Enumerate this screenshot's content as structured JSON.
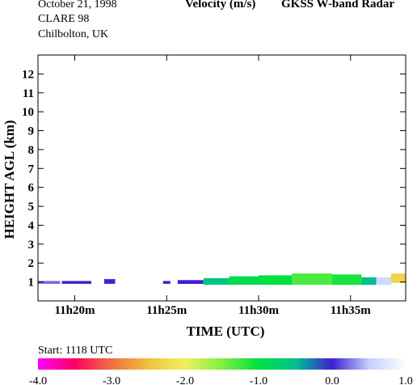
{
  "header": {
    "date": "October  21, 1998",
    "campaign": "CLARE 98",
    "location": "Chilbolton, UK",
    "title": "Velocity (m/s)",
    "instrument": "GKSS  W-band Radar"
  },
  "footer": {
    "start_label": "Start: 1118 UTC"
  },
  "chart_data": {
    "type": "heatmap",
    "title": "Velocity (m/s)",
    "xlabel": "TIME (UTC)",
    "ylabel": "HEIGHT AGL (km)",
    "x_tick_labels": [
      "11h20m",
      "11h25m",
      "11h30m",
      "11h35m"
    ],
    "x_ticks_min": [
      20,
      25,
      30,
      35
    ],
    "xlim_min": [
      18,
      38
    ],
    "y_ticks": [
      1,
      2,
      3,
      4,
      5,
      6,
      7,
      8,
      9,
      10,
      11,
      12
    ],
    "y_tick_labels": [
      "1",
      "2",
      "3",
      "4",
      "5",
      "6",
      "7",
      "8",
      "9",
      "10",
      "11",
      "12"
    ],
    "ylim": [
      0,
      13
    ],
    "colorbar": {
      "range": [
        -4.0,
        1.0
      ],
      "tick_values": [
        -4.0,
        -3.0,
        -2.0,
        -1.0,
        0.0,
        1.0
      ],
      "tick_labels": [
        "-4.0",
        "-3.0",
        "-2.0",
        "-1.0",
        "0.0",
        "1.0"
      ],
      "colors": [
        "#ff00ff",
        "#ff0060",
        "#f07040",
        "#f0c040",
        "#f0f060",
        "#80f040",
        "#00e040",
        "#00c090",
        "#4020d0",
        "#c0d0ff",
        "#ffffff"
      ]
    },
    "echo_segments": [
      {
        "t_start": 18.0,
        "t_end": 19.2,
        "h_bottom": 0.9,
        "h_top": 1.05,
        "velocity": 0.2
      },
      {
        "t_start": 19.3,
        "t_end": 20.9,
        "h_bottom": 0.9,
        "h_top": 1.05,
        "velocity": 0.0
      },
      {
        "t_start": 21.6,
        "t_end": 22.2,
        "h_bottom": 0.9,
        "h_top": 1.15,
        "velocity": 0.0
      },
      {
        "t_start": 24.8,
        "t_end": 25.2,
        "h_bottom": 0.9,
        "h_top": 1.05,
        "velocity": 0.0
      },
      {
        "t_start": 25.6,
        "t_end": 27.0,
        "h_bottom": 0.9,
        "h_top": 1.1,
        "velocity": 0.0
      },
      {
        "t_start": 27.0,
        "t_end": 28.4,
        "h_bottom": 0.85,
        "h_top": 1.2,
        "velocity": -0.6
      },
      {
        "t_start": 28.4,
        "t_end": 30.0,
        "h_bottom": 0.85,
        "h_top": 1.3,
        "velocity": -0.9
      },
      {
        "t_start": 30.0,
        "t_end": 31.8,
        "h_bottom": 0.85,
        "h_top": 1.35,
        "velocity": -1.0
      },
      {
        "t_start": 31.8,
        "t_end": 34.0,
        "h_bottom": 0.85,
        "h_top": 1.45,
        "velocity": -1.3
      },
      {
        "t_start": 34.0,
        "t_end": 35.6,
        "h_bottom": 0.85,
        "h_top": 1.4,
        "velocity": -1.1
      },
      {
        "t_start": 35.6,
        "t_end": 36.4,
        "h_bottom": 0.85,
        "h_top": 1.25,
        "velocity": -0.5
      },
      {
        "t_start": 36.4,
        "t_end": 37.2,
        "h_bottom": 0.85,
        "h_top": 1.25,
        "velocity": 0.6
      },
      {
        "t_start": 37.2,
        "t_end": 38.0,
        "h_bottom": 0.95,
        "h_top": 1.45,
        "velocity": -2.3
      }
    ]
  }
}
